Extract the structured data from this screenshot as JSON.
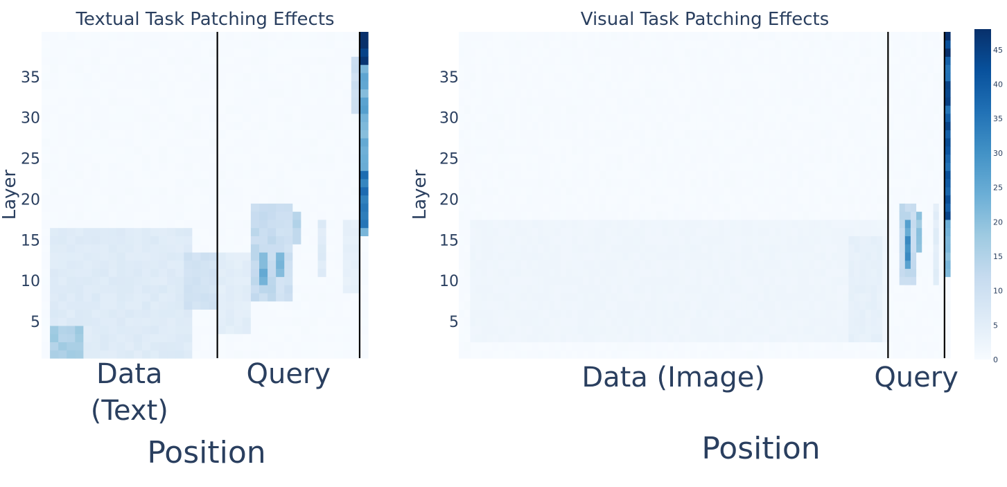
{
  "chart_data": [
    {
      "type": "heatmap",
      "title": "Textual Task Patching Effects",
      "xlabel": "Position",
      "ylabel": "Layer",
      "yticks": [
        5,
        10,
        15,
        20,
        25,
        30,
        35
      ],
      "ylim": [
        0,
        40
      ],
      "regions": [
        {
          "label_lines": [
            "Data",
            "(Text)"
          ],
          "start": 0,
          "end": 21
        },
        {
          "label_lines": [
            "Query"
          ],
          "start": 21,
          "end": 38
        }
      ],
      "separators": [
        21,
        38
      ],
      "num_positions": 39,
      "num_layers": 40,
      "colorscale": [
        "#f7fbff",
        "#deebf7",
        "#c6dbef",
        "#9ecae1",
        "#6baed6",
        "#4292c6",
        "#2171b5",
        "#08519c",
        "#08306b"
      ],
      "zmax": 48,
      "hotspots": [
        {
          "x": [
            1,
            17
          ],
          "y": [
            0,
            15
          ],
          "value": 6
        },
        {
          "x": [
            1,
            4
          ],
          "y": [
            0,
            3
          ],
          "value": 16
        },
        {
          "x": [
            17,
            20
          ],
          "y": [
            6,
            12
          ],
          "value": 9
        },
        {
          "x": [
            21,
            24
          ],
          "y": [
            3,
            12
          ],
          "value": 5
        },
        {
          "x": [
            25,
            27
          ],
          "y": [
            7,
            18
          ],
          "value": 12
        },
        {
          "x": [
            26,
            26
          ],
          "y": [
            9,
            12
          ],
          "value": 22
        },
        {
          "x": [
            27,
            29
          ],
          "y": [
            7,
            18
          ],
          "value": 10
        },
        {
          "x": [
            28,
            28
          ],
          "y": [
            10,
            12
          ],
          "value": 20
        },
        {
          "x": [
            30,
            30
          ],
          "y": [
            14,
            17
          ],
          "value": 14
        },
        {
          "x": [
            33,
            33
          ],
          "y": [
            10,
            16
          ],
          "value": 6
        },
        {
          "x": [
            36,
            37
          ],
          "y": [
            8,
            16
          ],
          "value": 4
        },
        {
          "x": [
            37,
            37
          ],
          "y": [
            30,
            36
          ],
          "value": 10
        },
        {
          "x": [
            38,
            38
          ],
          "y": [
            15,
            36
          ],
          "value": 24
        },
        {
          "x": [
            38,
            38
          ],
          "y": [
            16,
            22
          ],
          "value": 36
        },
        {
          "x": [
            38,
            38
          ],
          "y": [
            36,
            39
          ],
          "value": 46
        }
      ]
    },
    {
      "type": "heatmap",
      "title": "Visual Task Patching Effects",
      "xlabel": "Position",
      "ylabel": "Layer",
      "yticks": [
        5,
        10,
        15,
        20,
        25,
        30,
        35
      ],
      "ylim": [
        0,
        40
      ],
      "regions": [
        {
          "label_lines": [
            "Data (Image)"
          ],
          "start": 0,
          "end": 76
        },
        {
          "label_lines": [
            "Query"
          ],
          "start": 76,
          "end": 86
        }
      ],
      "separators": [
        76,
        86
      ],
      "num_positions": 87,
      "num_layers": 40,
      "colorscale": [
        "#f7fbff",
        "#deebf7",
        "#c6dbef",
        "#9ecae1",
        "#6baed6",
        "#4292c6",
        "#2171b5",
        "#08519c",
        "#08306b"
      ],
      "zmax": 48,
      "colorbar_ticks": [
        0,
        5,
        10,
        15,
        20,
        25,
        30,
        35,
        40,
        45
      ],
      "hotspots": [
        {
          "x": [
            2,
            75
          ],
          "y": [
            2,
            16
          ],
          "value": 2
        },
        {
          "x": [
            69,
            74
          ],
          "y": [
            2,
            14
          ],
          "value": 4
        },
        {
          "x": [
            78,
            80
          ],
          "y": [
            9,
            18
          ],
          "value": 12
        },
        {
          "x": [
            79,
            79
          ],
          "y": [
            11,
            16
          ],
          "value": 28
        },
        {
          "x": [
            81,
            81
          ],
          "y": [
            13,
            17
          ],
          "value": 18
        },
        {
          "x": [
            84,
            84
          ],
          "y": [
            9,
            18
          ],
          "value": 5
        },
        {
          "x": [
            86,
            86
          ],
          "y": [
            10,
            39
          ],
          "value": 22
        },
        {
          "x": [
            86,
            86
          ],
          "y": [
            17,
            36
          ],
          "value": 40
        },
        {
          "x": [
            86,
            86
          ],
          "y": [
            36,
            39
          ],
          "value": 46
        }
      ]
    }
  ]
}
